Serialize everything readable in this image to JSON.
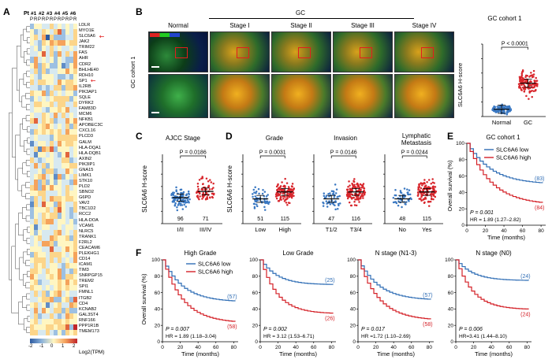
{
  "panels": {
    "A": "A",
    "B": "B",
    "C": "C",
    "D": "D",
    "E": "E",
    "F": "F"
  },
  "heatmap": {
    "pt_label": "Pt",
    "patients": [
      "#1",
      "#2",
      "#3",
      "#4",
      "#5",
      "#6"
    ],
    "sample_labels": [
      "P",
      "R",
      "P",
      "R",
      "P",
      "R",
      "P",
      "R",
      "P",
      "R",
      "P",
      "R"
    ],
    "genes": [
      "LDLR",
      "MYO1E",
      "SLC6A6",
      "JAK2",
      "TRIM22",
      "FAS",
      "AHR",
      "CDR2",
      "BHLHE40",
      "RDH10",
      "SP1",
      "IL2RB",
      "PIK3AP1",
      "SQLE",
      "DYRK2",
      "FAM83D",
      "MCM6",
      "NFKB1",
      "APOBEC3C",
      "CXCL16",
      "PLCD3",
      "GALM",
      "HLA-DQA1",
      "HLA-DQB1",
      "AXIN2",
      "PIK3IP1",
      "GNA15",
      "LIMK1",
      "STK10",
      "PLD2",
      "SBNO2",
      "G6PD",
      "VAV2",
      "TBC1D2",
      "RCC2",
      "HLA-DOA",
      "VCAM1",
      "NLRC5",
      "TRANK1",
      "F2RL2",
      "CEACAM6",
      "PLEKHG1",
      "CD14",
      "ICAM1",
      "TIM3",
      "SNRPGP15",
      "TREM2",
      "SPI1",
      "FMNL1",
      "ITGB2",
      "CD4",
      "KCNAB2",
      "GAL3ST4",
      "RNF166",
      "PPP1R1B",
      "TMEM173"
    ],
    "highlighted": [
      "SLC6A6",
      "SP1"
    ],
    "scale_ticks": [
      "-2",
      "-1",
      "0",
      "1",
      "2"
    ],
    "scale_label": "Log2(TPM)",
    "colors": {
      "low": "#2c5aa0",
      "mid": "#fff6c2",
      "high": "#c0242a",
      "arrow": "#e21d1d"
    }
  },
  "panel_b": {
    "gc_header": "GC",
    "row_label": "GC cohort 1",
    "columns": [
      "Normal",
      "Stage I",
      "Stage II",
      "Stage III",
      "Stage IV"
    ],
    "plot_title": "GC cohort 1",
    "ylabel": "SLC6A6 H-score",
    "pvalue": "P < 0.0001",
    "categories": [
      "Normal",
      "GC"
    ]
  },
  "panel_c": {
    "title": "AJCC Stage",
    "ylabel": "SLC6A6 H-score",
    "pvalue": "P = 0.0186",
    "categories": [
      "I/II",
      "III/IV"
    ],
    "counts": [
      "96",
      "71"
    ]
  },
  "panel_d": {
    "ylabel": "SLC6A6 H-score",
    "subplots": [
      {
        "title": "Grade",
        "pvalue": "P = 0.0031",
        "categories": [
          "Low",
          "High"
        ],
        "counts": [
          "51",
          "115"
        ]
      },
      {
        "title": "Invasion",
        "pvalue": "P = 0.0146",
        "categories": [
          "T1/2",
          "T3/4"
        ],
        "counts": [
          "47",
          "116"
        ]
      },
      {
        "title": "Lymphatic Metastasis",
        "title_line1": "Lymphatic",
        "title_line2": "Metastasis",
        "pvalue": "P = 0.0244",
        "categories": [
          "No",
          "Yes"
        ],
        "counts": [
          "48",
          "115"
        ]
      }
    ]
  },
  "panel_e": {
    "title": "GC cohort 1",
    "ylabel": "Overall survival (%)",
    "xlabel": "Time (months)",
    "legend": [
      "SLC6A6 low",
      "SLC6A6 high"
    ],
    "n_low": "(83)",
    "n_high": "(84)",
    "pvalue": "P = 0.001",
    "hr": "HR = 1.89 (1.27–2.82)"
  },
  "panel_f": {
    "ylabel": "Overall survival (%)",
    "xlabel": "Time (months)",
    "legend": [
      "SLC6A6 low",
      "SLC6A6 high"
    ],
    "subplots": [
      {
        "title": "High Grade",
        "n_low": "(57)",
        "n_high": "(58)",
        "pvalue": "P = 0.007",
        "hr": "HR = 1.89 (1.18–3.04)"
      },
      {
        "title": "Low Grade",
        "n_low": "(25)",
        "n_high": "(26)",
        "pvalue": "P = 0.002",
        "hr": "HR = 3.12 (1.53–6.71)"
      },
      {
        "title": "N stage (N1-3)",
        "n_low": "(57)",
        "n_high": "(58)",
        "pvalue": "P = 0.017",
        "hr": "HR =1.72 (1.10–2.69)"
      },
      {
        "title": "N stage (N0)",
        "n_low": "(24)",
        "n_high": "(24)",
        "pvalue": "P = 0.006",
        "hr": "HR=3.41 (1.44–8.10)"
      }
    ]
  },
  "km_ticks_x": [
    "0",
    "20",
    "40",
    "60",
    "80"
  ],
  "km_ticks_y": [
    "0",
    "20",
    "40",
    "60",
    "80",
    "100"
  ],
  "colors": {
    "low": "#2f6db5",
    "high": "#d42027",
    "dots_blue": "#3a78c2",
    "dots_red": "#d8262c"
  }
}
